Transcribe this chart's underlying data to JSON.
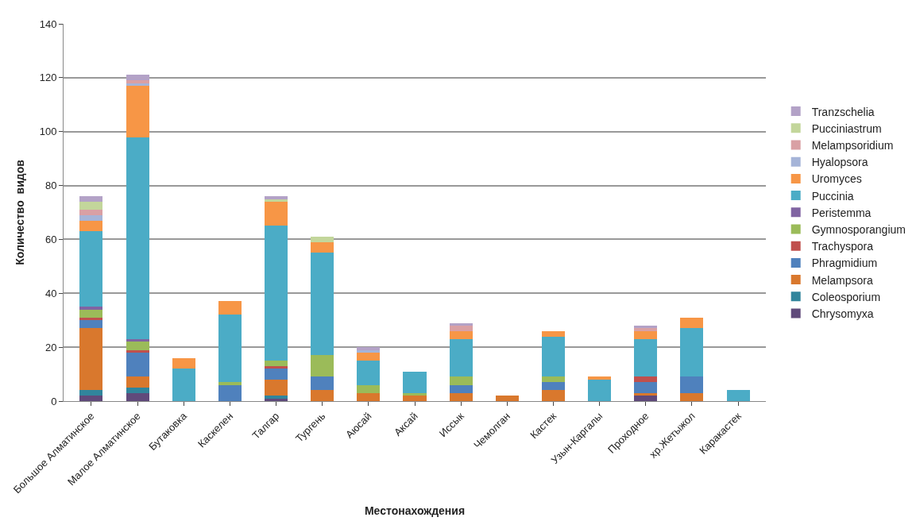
{
  "chart_data": {
    "type": "bar",
    "stacked": true,
    "xlabel": "Местонахождения",
    "ylabel": "Количество  видов",
    "categories": [
      "Большое Алматинское",
      "Малое Алматинское",
      "Бутаковка",
      "Каскелен",
      "Талгар",
      "Тургень",
      "Аюсай",
      "Аксай",
      "Иссык",
      "Чемолган",
      "Кастек",
      "Узын-Каргалы",
      "Проходное",
      "хр.Жетыжол",
      "Каракастек"
    ],
    "series": [
      {
        "name": "Chrysomyxa",
        "color": "#604a7b",
        "values": [
          2,
          3,
          0,
          0,
          1,
          0,
          0,
          0,
          0,
          0,
          0,
          0,
          2,
          0,
          0
        ]
      },
      {
        "name": "Coleosporium",
        "color": "#31859c",
        "values": [
          2,
          2,
          0,
          0,
          1,
          0,
          0,
          0,
          0,
          0,
          0,
          0,
          0,
          0,
          0
        ]
      },
      {
        "name": "Melampsora",
        "color": "#d9782d",
        "values": [
          23,
          4,
          0,
          0,
          6,
          4,
          3,
          2,
          3,
          2,
          4,
          0,
          1,
          3,
          0
        ]
      },
      {
        "name": "Phragmidium",
        "color": "#4f81bd",
        "values": [
          3,
          9,
          0,
          6,
          4,
          5,
          0,
          0,
          3,
          0,
          3,
          0,
          4,
          6,
          0
        ]
      },
      {
        "name": "Trachyspora",
        "color": "#c0504d",
        "values": [
          1,
          1,
          0,
          0,
          1,
          0,
          0,
          0,
          0,
          0,
          0,
          0,
          2,
          0,
          0
        ]
      },
      {
        "name": "Gymnosporangium",
        "color": "#9bbb59",
        "values": [
          3,
          3,
          0,
          1,
          2,
          8,
          3,
          1,
          3,
          0,
          2,
          0,
          0,
          0,
          0
        ]
      },
      {
        "name": "Peristemma",
        "color": "#8064a2",
        "values": [
          1,
          1,
          0,
          0,
          0,
          0,
          0,
          0,
          0,
          0,
          0,
          0,
          0,
          0,
          0
        ]
      },
      {
        "name": "Puccinia",
        "color": "#4bacc6",
        "values": [
          28,
          75,
          12,
          25,
          50,
          38,
          9,
          8,
          14,
          0,
          15,
          8,
          14,
          18,
          4
        ]
      },
      {
        "name": "Uromyces",
        "color": "#f79646",
        "values": [
          4,
          19,
          4,
          5,
          9,
          4,
          3,
          0,
          3,
          0,
          2,
          1,
          3,
          4,
          0
        ]
      },
      {
        "name": "Hyalopsora",
        "color": "#a5b4d8",
        "values": [
          2,
          1,
          0,
          0,
          0,
          0,
          1,
          0,
          0,
          0,
          0,
          0,
          0,
          0,
          0
        ]
      },
      {
        "name": "Melampsoridium",
        "color": "#d9a0a4",
        "values": [
          2,
          1,
          0,
          0,
          0,
          0,
          0,
          0,
          2,
          0,
          0,
          0,
          1,
          0,
          0
        ]
      },
      {
        "name": "Pucciniastrum",
        "color": "#c3d69b",
        "values": [
          3,
          0,
          0,
          0,
          1,
          2,
          0,
          0,
          0,
          0,
          0,
          0,
          0,
          0,
          0
        ]
      },
      {
        "name": "Tranzschelia",
        "color": "#b3a2c7",
        "values": [
          2,
          2,
          0,
          0,
          1,
          0,
          1,
          0,
          1,
          0,
          0,
          0,
          1,
          0,
          0
        ]
      }
    ],
    "ylim": [
      0,
      140
    ],
    "yticks": [
      0,
      20,
      40,
      60,
      80,
      100,
      120,
      140
    ],
    "grid": "y",
    "legend": "right"
  }
}
